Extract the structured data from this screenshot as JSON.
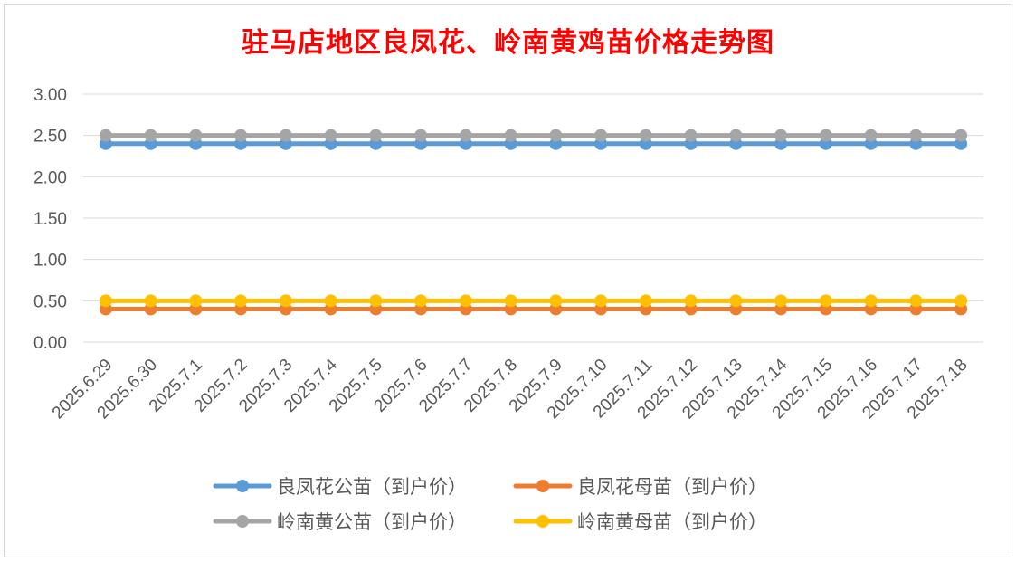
{
  "chart_data": {
    "type": "line",
    "title": "驻马店地区良凤花、岭南黄鸡苗价格走势图",
    "xlabel": "",
    "ylabel": "",
    "ylim": [
      0,
      3
    ],
    "yticks": [
      "0.00",
      "0.50",
      "1.00",
      "1.50",
      "2.00",
      "2.50",
      "3.00"
    ],
    "grid": true,
    "legend_position": "bottom",
    "categories": [
      "2025.6.29",
      "2025.6.30",
      "2025.7.1",
      "2025.7.2",
      "2025.7.3",
      "2025.7.4",
      "2025.7.5",
      "2025.7.6",
      "2025.7.7",
      "2025.7.8",
      "2025.7.9",
      "2025.7.10",
      "2025.7.11",
      "2025.7.12",
      "2025.7.13",
      "2025.7.14",
      "2025.7.15",
      "2025.7.16",
      "2025.7.17",
      "2025.7.18"
    ],
    "series": [
      {
        "name": "良凤花公苗（到户价）",
        "color": "#5b9bd5",
        "values": [
          2.4,
          2.4,
          2.4,
          2.4,
          2.4,
          2.4,
          2.4,
          2.4,
          2.4,
          2.4,
          2.4,
          2.4,
          2.4,
          2.4,
          2.4,
          2.4,
          2.4,
          2.4,
          2.4,
          2.4
        ]
      },
      {
        "name": "良凤花母苗（到户价）",
        "color": "#ed7d31",
        "values": [
          0.4,
          0.4,
          0.4,
          0.4,
          0.4,
          0.4,
          0.4,
          0.4,
          0.4,
          0.4,
          0.4,
          0.4,
          0.4,
          0.4,
          0.4,
          0.4,
          0.4,
          0.4,
          0.4,
          0.4
        ]
      },
      {
        "name": "岭南黄公苗（到户价）",
        "color": "#a5a5a5",
        "values": [
          2.5,
          2.5,
          2.5,
          2.5,
          2.5,
          2.5,
          2.5,
          2.5,
          2.5,
          2.5,
          2.5,
          2.5,
          2.5,
          2.5,
          2.5,
          2.5,
          2.5,
          2.5,
          2.5,
          2.5
        ]
      },
      {
        "name": "岭南黄母苗（到户价）",
        "color": "#ffc000",
        "values": [
          0.5,
          0.5,
          0.5,
          0.5,
          0.5,
          0.5,
          0.5,
          0.5,
          0.5,
          0.5,
          0.5,
          0.5,
          0.5,
          0.5,
          0.5,
          0.5,
          0.5,
          0.5,
          0.5,
          0.5
        ]
      }
    ]
  }
}
